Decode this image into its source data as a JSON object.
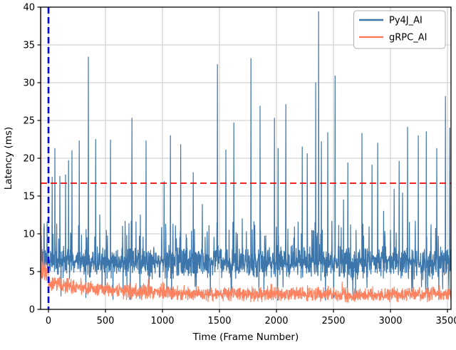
{
  "chart_data": {
    "type": "line",
    "title": "",
    "xlabel": "Time (Frame Number)",
    "ylabel": "Latency (ms)",
    "xlim": [
      -69,
      3531
    ],
    "ylim": [
      0,
      40
    ],
    "xtick_values": [
      0,
      500,
      1000,
      1500,
      2000,
      2500,
      3000,
      3500
    ],
    "xtick_labels": [
      "0",
      "500",
      "1000",
      "1500",
      "2000",
      "2500",
      "3000",
      "3500"
    ],
    "ytick_values": [
      0,
      5,
      10,
      15,
      20,
      25,
      30,
      35,
      40
    ],
    "ytick_labels": [
      "0",
      "5",
      "10",
      "15",
      "20",
      "25",
      "30",
      "35",
      "40"
    ],
    "grid": {
      "show": true,
      "color": "#c9c9c9"
    },
    "background": "#ffffff",
    "spine_color": "#000000",
    "reference_lines": {
      "threshold_hline": {
        "y": 16.7,
        "color": "#ff0000",
        "style": "dashed"
      },
      "start_vline": {
        "x": 0,
        "color": "#0000ff",
        "style": "dashed"
      }
    },
    "legend": {
      "location": "upper right",
      "entries": [
        {
          "label": "Py4J_AI",
          "color": "#3c76ab"
        },
        {
          "label": "gRPC_AI",
          "color": "#fc7351"
        }
      ]
    },
    "seed": 20240731,
    "series": [
      {
        "name": "Py4J_AI",
        "kind": "py4j",
        "color": "#3c76ab",
        "line_width": 1.2,
        "x_start": -62,
        "x_end": 3531,
        "step": 2,
        "band_min": 3.8,
        "band_max": 8.6,
        "bump_max": 11.7,
        "dip_min": 1.2,
        "spikes": [
          [
            -40,
            10.7
          ],
          [
            31,
            17.5
          ],
          [
            56,
            21.3
          ],
          [
            100,
            17.6
          ],
          [
            150,
            17.8
          ],
          [
            175,
            19.7
          ],
          [
            205,
            21.0
          ],
          [
            269,
            22.3
          ],
          [
            350,
            33.4
          ],
          [
            413,
            22.5
          ],
          [
            450,
            12.5
          ],
          [
            544,
            22.4
          ],
          [
            650,
            11.0
          ],
          [
            731,
            25.3
          ],
          [
            806,
            12.5
          ],
          [
            856,
            22.3
          ],
          [
            1013,
            16.9
          ],
          [
            1069,
            23.0
          ],
          [
            1160,
            21.8
          ],
          [
            1270,
            18.1
          ],
          [
            1350,
            13.9
          ],
          [
            1481,
            32.4
          ],
          [
            1556,
            21.1
          ],
          [
            1625,
            24.7
          ],
          [
            1700,
            12.0
          ],
          [
            1775,
            33.2
          ],
          [
            1856,
            26.9
          ],
          [
            1981,
            25.3
          ],
          [
            2013,
            21.3
          ],
          [
            2081,
            27.1
          ],
          [
            2225,
            21.5
          ],
          [
            2269,
            20.6
          ],
          [
            2344,
            30.0
          ],
          [
            2369,
            39.4
          ],
          [
            2394,
            22.2
          ],
          [
            2450,
            23.4
          ],
          [
            2513,
            30.9
          ],
          [
            2588,
            14.5
          ],
          [
            2625,
            19.4
          ],
          [
            2750,
            23.3
          ],
          [
            2838,
            19.1
          ],
          [
            2888,
            22.0
          ],
          [
            2940,
            13.0
          ],
          [
            3031,
            15.9
          ],
          [
            3075,
            19.6
          ],
          [
            3106,
            15.4
          ],
          [
            3150,
            24.1
          ],
          [
            3244,
            23.0
          ],
          [
            3313,
            23.5
          ],
          [
            3356,
            11.2
          ],
          [
            3406,
            21.3
          ],
          [
            3481,
            28.2
          ],
          [
            3520,
            24.0
          ]
        ]
      },
      {
        "name": "gRPC_AI",
        "kind": "grpc",
        "color": "#fc8260",
        "line_width": 1.2,
        "x_start": -66,
        "x_end": 3531,
        "step": 2,
        "start_peak": 46,
        "settle": 1.95,
        "decay_amp": 1.6,
        "decay_tau": 500,
        "floor": 0.9,
        "spikes": []
      }
    ]
  }
}
